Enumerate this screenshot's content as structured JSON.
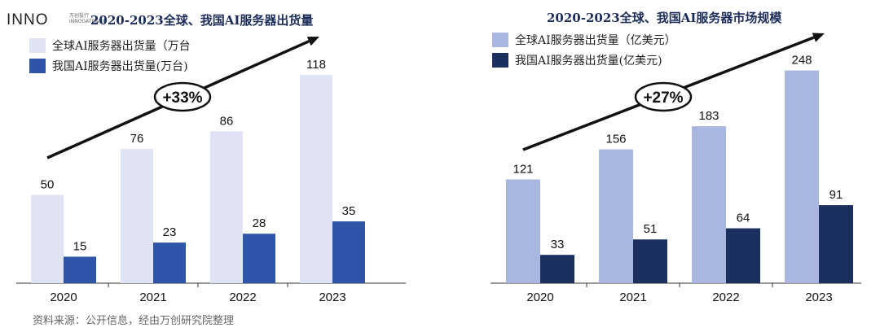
{
  "logo": {
    "text": "INNO",
    "sub": "万创投行 INNOGATEWAY"
  },
  "source": "资料来源：公开信息，经由万创研究院整理",
  "chart_data": [
    {
      "type": "bar",
      "title": "2020-2023全球、我国AI服务器出货量",
      "categories": [
        "2020",
        "2021",
        "2022",
        "2023"
      ],
      "series": [
        {
          "name": "全球AI服务器出货量（万台",
          "values": [
            50,
            76,
            86,
            118
          ],
          "color": "#dfe3f3"
        },
        {
          "name": "我国AI服务器出货量(万台)",
          "values": [
            15,
            23,
            28,
            35
          ],
          "color": "#2f55a8"
        }
      ],
      "annotation": "+33%",
      "ylim": [
        0,
        135
      ],
      "legend": "top-left"
    },
    {
      "type": "bar",
      "title": "2020-2023全球、我国AI服务器市场规模",
      "categories": [
        "2020",
        "2021",
        "2022",
        "2023"
      ],
      "series": [
        {
          "name": "全球AI服务器出货量（亿美元）",
          "values": [
            121,
            156,
            183,
            248
          ],
          "color": "#a9b6df"
        },
        {
          "name": "我国AI服务器出货量(亿美元)",
          "values": [
            33,
            51,
            64,
            91
          ],
          "color": "#1c3060"
        }
      ],
      "annotation": "+27%",
      "ylim": [
        0,
        278
      ],
      "legend": "top-left"
    }
  ]
}
